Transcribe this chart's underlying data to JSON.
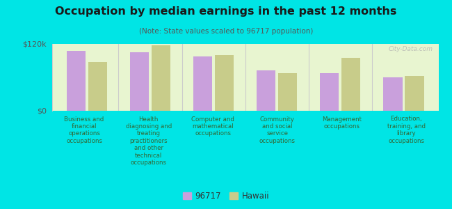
{
  "title": "Occupation by median earnings in the past 12 months",
  "subtitle": "(Note: State values scaled to 96717 population)",
  "categories": [
    "Business and\nfinancial\noperations\noccupations",
    "Health\ndiagnosing and\ntreating\npractitioners\nand other\ntechnical\noccupations",
    "Computer and\nmathematical\noccupations",
    "Community\nand social\nservice\noccupations",
    "Management\noccupations",
    "Education,\ntraining, and\nlibrary\noccupations"
  ],
  "values_96717": [
    108000,
    105000,
    98000,
    72000,
    68000,
    60000
  ],
  "values_hawaii": [
    88000,
    118000,
    100000,
    68000,
    95000,
    63000
  ],
  "color_96717": "#c9a0dc",
  "color_hawaii": "#c8cc8a",
  "ylim": [
    0,
    120000
  ],
  "yticks": [
    0,
    120000
  ],
  "ytick_labels": [
    "$0",
    "$120k"
  ],
  "background_color": "#e8f5d0",
  "outer_background": "#00e5e5",
  "legend_label_96717": "96717",
  "legend_label_hawaii": "Hawaii",
  "watermark": "City-Data.com",
  "title_color": "#1a1a1a",
  "subtitle_color": "#555555",
  "label_color": "#336633",
  "ytick_color": "#555555",
  "sep_color": "#cccccc",
  "spine_color": "#cccccc"
}
